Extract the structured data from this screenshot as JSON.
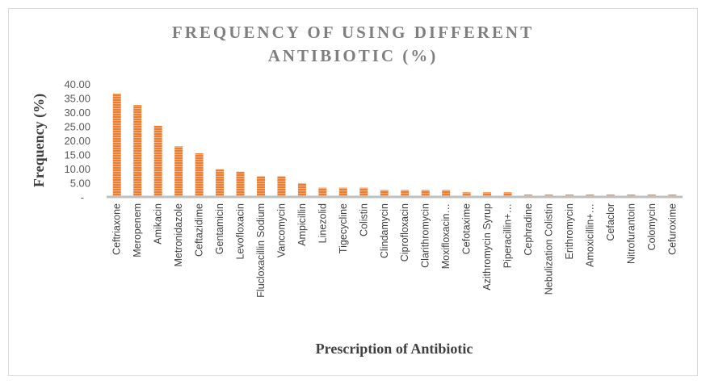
{
  "chart_data": {
    "type": "bar",
    "title_lines": [
      "FREQUENCY OF USING DIFFERENT",
      "ANTIBIOTIC (%)"
    ],
    "xlabel": "Prescription of Antibiotic",
    "ylabel": "Frequency (%)",
    "ylim": [
      0,
      40
    ],
    "yticks": [
      0,
      5,
      10,
      15,
      20,
      25,
      30,
      35,
      40
    ],
    "ytick_labels": [
      "-",
      "5.00",
      "10.00",
      "15.00",
      "20.00",
      "25.00",
      "30.00",
      "35.00",
      "40.00"
    ],
    "grid": false,
    "bar_color": "#ed7d31",
    "categories": [
      "Ceftriaxone",
      "Meropenem",
      "Amikacin",
      "Metronidazole",
      "Ceftazidime",
      "Gentamicin",
      "Levofloxacin",
      "Flucloxacillin Sodium",
      "Vancomycin",
      "Ampicillin",
      "Linezolid",
      "Tigecycline",
      "Colistin",
      "Clindamycin",
      "Ciprofloxacin",
      "Clarithromycin",
      "Moxifloxacin…",
      "Cefotaxime",
      "Azithromycin Syrup",
      "Piperacillin+…",
      "Cephradine",
      "Nebulization Colistin",
      "Erithromycin",
      "Amoxicillin+…",
      "Cefaclor",
      "Nitrofurantoin",
      "Colomycin",
      "Cefuroxime"
    ],
    "values": [
      36.59,
      32.52,
      25.2,
      17.89,
      15.45,
      9.76,
      8.94,
      7.32,
      7.32,
      4.88,
      3.25,
      3.25,
      3.25,
      2.44,
      2.44,
      2.44,
      2.44,
      1.63,
      1.63,
      1.63,
      0.81,
      0.81,
      0.81,
      0.81,
      0.81,
      0.81,
      0.81,
      0.81
    ]
  }
}
